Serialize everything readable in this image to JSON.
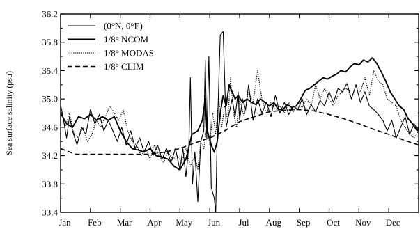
{
  "chart_data": {
    "type": "line",
    "title": "",
    "xlabel": "",
    "ylabel": "Sea surface salinity (psu)",
    "xlim": [
      0,
      12
    ],
    "ylim": [
      33.4,
      36.2
    ],
    "x_ticks": [
      {
        "pos": 0,
        "label": "Jan"
      },
      {
        "pos": 1,
        "label": "Feb"
      },
      {
        "pos": 2,
        "label": "Mar"
      },
      {
        "pos": 3,
        "label": "Apr"
      },
      {
        "pos": 4,
        "label": "May"
      },
      {
        "pos": 5,
        "label": "Jun"
      },
      {
        "pos": 6,
        "label": "Jul"
      },
      {
        "pos": 7,
        "label": "Aug"
      },
      {
        "pos": 8,
        "label": "Sep"
      },
      {
        "pos": 9,
        "label": "Oct"
      },
      {
        "pos": 10,
        "label": "Nov"
      },
      {
        "pos": 11,
        "label": "Dec"
      }
    ],
    "y_ticks": [
      {
        "value": 33.4,
        "label": "33.4"
      },
      {
        "value": 33.8,
        "label": "33.8"
      },
      {
        "value": 34.2,
        "label": "34.2"
      },
      {
        "value": 34.6,
        "label": "34.6"
      },
      {
        "value": 35.0,
        "label": "35.0"
      },
      {
        "value": 35.4,
        "label": "35.4"
      },
      {
        "value": 35.8,
        "label": "35.8"
      },
      {
        "value": 36.2,
        "label": "36.2"
      }
    ],
    "grid": false,
    "legend_placement": "top-left",
    "series": [
      {
        "name": "(0°N, 0°E)",
        "style": "solid-thin",
        "color": "#000000",
        "x": [
          0.0,
          0.1,
          0.2,
          0.3,
          0.4,
          0.55,
          0.7,
          0.85,
          1.0,
          1.15,
          1.3,
          1.45,
          1.6,
          1.75,
          1.9,
          2.05,
          2.2,
          2.35,
          2.5,
          2.65,
          2.8,
          2.95,
          3.1,
          3.25,
          3.4,
          3.55,
          3.7,
          3.85,
          4.0,
          4.1,
          4.2,
          4.3,
          4.35,
          4.42,
          4.5,
          4.6,
          4.7,
          4.8,
          4.85,
          4.9,
          4.97,
          5.05,
          5.15,
          5.2,
          5.25,
          5.35,
          5.45,
          5.55,
          5.65,
          5.75,
          5.85,
          5.95,
          6.0,
          6.1,
          6.2,
          6.3,
          6.45,
          6.6,
          6.75,
          6.9,
          7.05,
          7.2,
          7.35,
          7.5,
          7.65,
          7.8,
          7.95,
          8.1,
          8.25,
          8.4,
          8.55,
          8.7,
          8.85,
          9.0,
          9.15,
          9.3,
          9.45,
          9.6,
          9.75,
          9.9,
          10.05,
          10.2,
          10.35,
          10.5,
          10.65,
          10.8,
          10.95,
          11.1,
          11.25,
          11.4,
          11.55,
          11.7,
          11.85,
          12.0
        ],
        "y": [
          34.92,
          34.7,
          34.45,
          34.75,
          34.55,
          34.35,
          34.6,
          34.5,
          34.85,
          34.65,
          34.78,
          34.55,
          34.7,
          34.55,
          34.4,
          34.6,
          34.35,
          34.55,
          34.3,
          34.45,
          34.25,
          34.4,
          34.2,
          34.35,
          34.15,
          34.3,
          34.1,
          34.3,
          34.0,
          34.3,
          33.9,
          34.35,
          35.3,
          33.8,
          34.25,
          33.55,
          34.4,
          34.55,
          35.55,
          34.45,
          35.6,
          33.75,
          33.6,
          33.4,
          34.5,
          35.9,
          35.95,
          34.6,
          34.8,
          35.0,
          34.75,
          35.1,
          34.7,
          35.0,
          34.85,
          35.2,
          34.7,
          35.0,
          34.8,
          34.95,
          34.75,
          35.05,
          34.8,
          34.95,
          34.78,
          34.9,
          34.85,
          35.0,
          34.78,
          34.92,
          34.82,
          34.98,
          34.9,
          35.1,
          34.95,
          35.15,
          35.1,
          35.22,
          35.0,
          35.2,
          34.95,
          35.1,
          34.9,
          34.85,
          34.78,
          34.7,
          34.55,
          34.7,
          34.45,
          34.6,
          34.75,
          34.5,
          34.65,
          34.55
        ]
      },
      {
        "name": "1/8° NCOM",
        "style": "solid-thick",
        "color": "#000000",
        "x": [
          0.0,
          0.2,
          0.4,
          0.6,
          0.8,
          1.0,
          1.2,
          1.4,
          1.6,
          1.8,
          2.0,
          2.2,
          2.4,
          2.6,
          2.8,
          3.0,
          3.2,
          3.4,
          3.6,
          3.8,
          4.0,
          4.2,
          4.4,
          4.6,
          4.75,
          4.85,
          4.9,
          4.95,
          5.05,
          5.15,
          5.25,
          5.35,
          5.45,
          5.55,
          5.65,
          5.75,
          5.85,
          5.95,
          6.1,
          6.25,
          6.4,
          6.55,
          6.7,
          6.85,
          7.0,
          7.15,
          7.3,
          7.45,
          7.6,
          7.75,
          7.9,
          8.05,
          8.2,
          8.35,
          8.5,
          8.65,
          8.8,
          8.95,
          9.1,
          9.25,
          9.4,
          9.55,
          9.7,
          9.85,
          10.0,
          10.15,
          10.3,
          10.45,
          10.6,
          10.75,
          10.9,
          11.05,
          11.2,
          11.35,
          11.5,
          11.65,
          11.8,
          11.95,
          12.0
        ],
        "y": [
          34.8,
          34.65,
          34.6,
          34.75,
          34.72,
          34.78,
          34.7,
          34.75,
          34.7,
          34.75,
          34.55,
          34.4,
          34.3,
          34.28,
          34.25,
          34.3,
          34.2,
          34.18,
          34.15,
          34.05,
          34.0,
          34.15,
          34.5,
          34.55,
          34.7,
          35.0,
          34.6,
          34.5,
          34.35,
          34.25,
          34.4,
          34.8,
          35.05,
          34.9,
          35.2,
          35.1,
          35.0,
          35.05,
          34.95,
          35.0,
          34.95,
          34.92,
          35.0,
          34.95,
          34.9,
          34.95,
          34.85,
          34.85,
          34.92,
          34.88,
          34.9,
          35.0,
          35.12,
          35.15,
          35.2,
          35.25,
          35.3,
          35.28,
          35.32,
          35.35,
          35.4,
          35.38,
          35.45,
          35.5,
          35.48,
          35.55,
          35.52,
          35.58,
          35.5,
          35.38,
          35.25,
          35.1,
          35.0,
          34.9,
          34.85,
          34.72,
          34.65,
          34.55,
          34.6
        ]
      },
      {
        "name": "1/8° MODAS",
        "style": "dotted",
        "color": "#000000",
        "x": [
          0.0,
          0.15,
          0.3,
          0.45,
          0.6,
          0.75,
          0.9,
          1.05,
          1.2,
          1.35,
          1.5,
          1.65,
          1.8,
          1.95,
          2.1,
          2.25,
          2.4,
          2.55,
          2.7,
          2.85,
          3.0,
          3.15,
          3.3,
          3.45,
          3.6,
          3.75,
          3.9,
          4.05,
          4.2,
          4.35,
          4.5,
          4.6,
          4.7,
          4.8,
          4.9,
          5.0,
          5.1,
          5.2,
          5.3,
          5.4,
          5.5,
          5.6,
          5.7,
          5.8,
          5.9,
          6.0,
          6.15,
          6.3,
          6.45,
          6.6,
          6.75,
          6.9,
          7.05,
          7.2,
          7.35,
          7.5,
          7.65,
          7.8,
          7.95,
          8.1,
          8.25,
          8.4,
          8.55,
          8.7,
          8.85,
          9.0,
          9.15,
          9.3,
          9.45,
          9.6,
          9.75,
          9.9,
          10.05,
          10.2,
          10.35,
          10.5,
          10.65,
          10.8,
          10.95,
          11.1,
          11.25,
          11.4,
          11.55,
          11.7,
          11.85,
          12.0
        ],
        "y": [
          34.9,
          34.6,
          34.8,
          34.5,
          34.45,
          34.6,
          34.4,
          34.5,
          34.7,
          34.6,
          34.75,
          34.9,
          34.8,
          34.7,
          34.85,
          34.55,
          34.4,
          34.35,
          34.2,
          34.3,
          34.15,
          34.35,
          34.2,
          34.1,
          34.25,
          34.15,
          34.2,
          34.1,
          34.3,
          34.05,
          34.2,
          34.0,
          34.4,
          34.3,
          34.6,
          34.35,
          34.8,
          34.5,
          35.0,
          34.6,
          34.9,
          34.7,
          35.3,
          34.8,
          34.6,
          35.0,
          34.75,
          35.1,
          34.95,
          35.4,
          35.0,
          34.8,
          34.95,
          34.85,
          34.9,
          34.8,
          34.95,
          34.82,
          34.95,
          34.88,
          35.0,
          34.9,
          35.2,
          35.0,
          35.15,
          35.0,
          34.9,
          35.05,
          35.1,
          35.15,
          35.0,
          35.2,
          35.1,
          35.3,
          35.05,
          35.4,
          35.25,
          35.2,
          35.0,
          34.95,
          34.9,
          34.7,
          34.6,
          34.5,
          34.45,
          34.55
        ]
      },
      {
        "name": "1/8° CLIM",
        "style": "dashed",
        "color": "#000000",
        "x": [
          0.0,
          0.5,
          1.0,
          1.5,
          2.0,
          2.5,
          3.0,
          3.5,
          4.0,
          4.5,
          5.0,
          5.5,
          6.0,
          6.5,
          7.0,
          7.5,
          8.0,
          8.5,
          9.0,
          9.5,
          10.0,
          10.5,
          11.0,
          11.5,
          12.0
        ],
        "y": [
          34.3,
          34.22,
          34.22,
          34.22,
          34.22,
          34.22,
          34.22,
          34.25,
          34.3,
          34.38,
          34.45,
          34.55,
          34.68,
          34.75,
          34.82,
          34.84,
          34.85,
          34.83,
          34.78,
          34.72,
          34.65,
          34.57,
          34.5,
          34.42,
          34.35
        ]
      }
    ]
  }
}
